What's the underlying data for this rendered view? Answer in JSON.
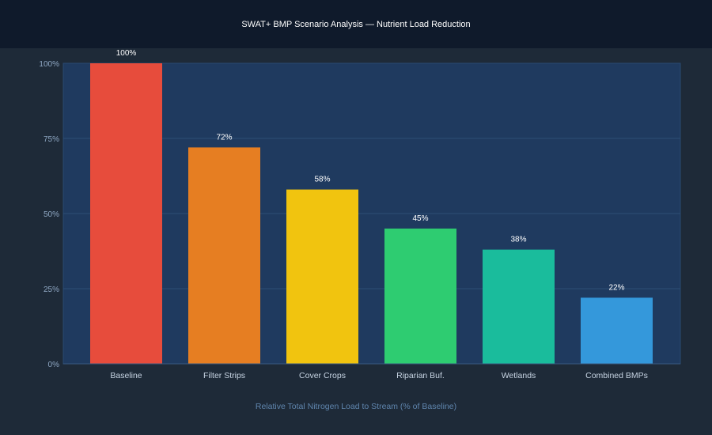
{
  "colors": {
    "page_background": "#1e2a38",
    "title_bar": "#0f1a2b",
    "plot_background": "#1f3a5f",
    "grid": "#2e4d74",
    "axis_text": "#8fa8c4",
    "category_text": "#c6d3e2",
    "value_label": "#ffffff",
    "xlabel_text": "#5f85ad"
  },
  "chart_data": {
    "type": "bar",
    "title": "SWAT+ BMP Scenario Analysis — Nutrient Load Reduction",
    "xlabel": "Relative Total Nitrogen Load to Stream (% of Baseline)",
    "ylabel": "",
    "ylim": [
      0,
      100
    ],
    "yticks": [
      0,
      25,
      50,
      75,
      100
    ],
    "ytick_labels": [
      "0%",
      "25%",
      "50%",
      "75%",
      "100%"
    ],
    "grid": true,
    "categories": [
      "Baseline",
      "Filter Strips",
      "Cover Crops",
      "Riparian Buf.",
      "Wetlands",
      "Combined BMPs"
    ],
    "values": [
      100,
      72,
      58,
      45,
      38,
      22
    ],
    "value_labels": [
      "100%",
      "72%",
      "58%",
      "45%",
      "38%",
      "22%"
    ],
    "bar_colors": [
      "#e74c3c",
      "#e67e22",
      "#f1c40f",
      "#2ecc71",
      "#1abc9c",
      "#3498db"
    ]
  }
}
